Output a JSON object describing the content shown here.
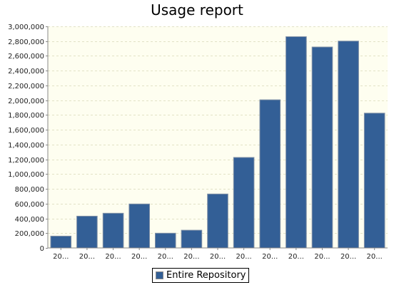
{
  "chart_data": {
    "type": "bar",
    "title": "Usage report",
    "xlabel": "",
    "ylabel": "",
    "categories": [
      "20...",
      "20...",
      "20...",
      "20...",
      "20...",
      "20...",
      "20...",
      "20...",
      "20...",
      "20...",
      "20...",
      "20...",
      "20..."
    ],
    "series": [
      {
        "name": "Entire Repository",
        "values": [
          160000,
          430000,
          470000,
          595000,
          200000,
          240000,
          730000,
          1225000,
          2005000,
          2860000,
          2720000,
          2800000,
          1825000
        ]
      }
    ],
    "ylim": [
      0,
      3000000
    ],
    "yticks": [
      0,
      200000,
      400000,
      600000,
      800000,
      1000000,
      1200000,
      1400000,
      1600000,
      1800000,
      2000000,
      2200000,
      2400000,
      2600000,
      2800000,
      3000000
    ],
    "ytick_labels": [
      "0",
      "200,000",
      "400,000",
      "600,000",
      "800,000",
      "1,000,000",
      "1,200,000",
      "1,400,000",
      "1,600,000",
      "1,800,000",
      "2,000,000",
      "2,200,000",
      "2,400,000",
      "2,600,000",
      "2,800,000",
      "3,000,000"
    ],
    "grid": true,
    "legend_position": "bottom",
    "colors": {
      "bar": "#335f96",
      "plot_background": "#fefef0",
      "grid": "#e2e2c6"
    }
  }
}
